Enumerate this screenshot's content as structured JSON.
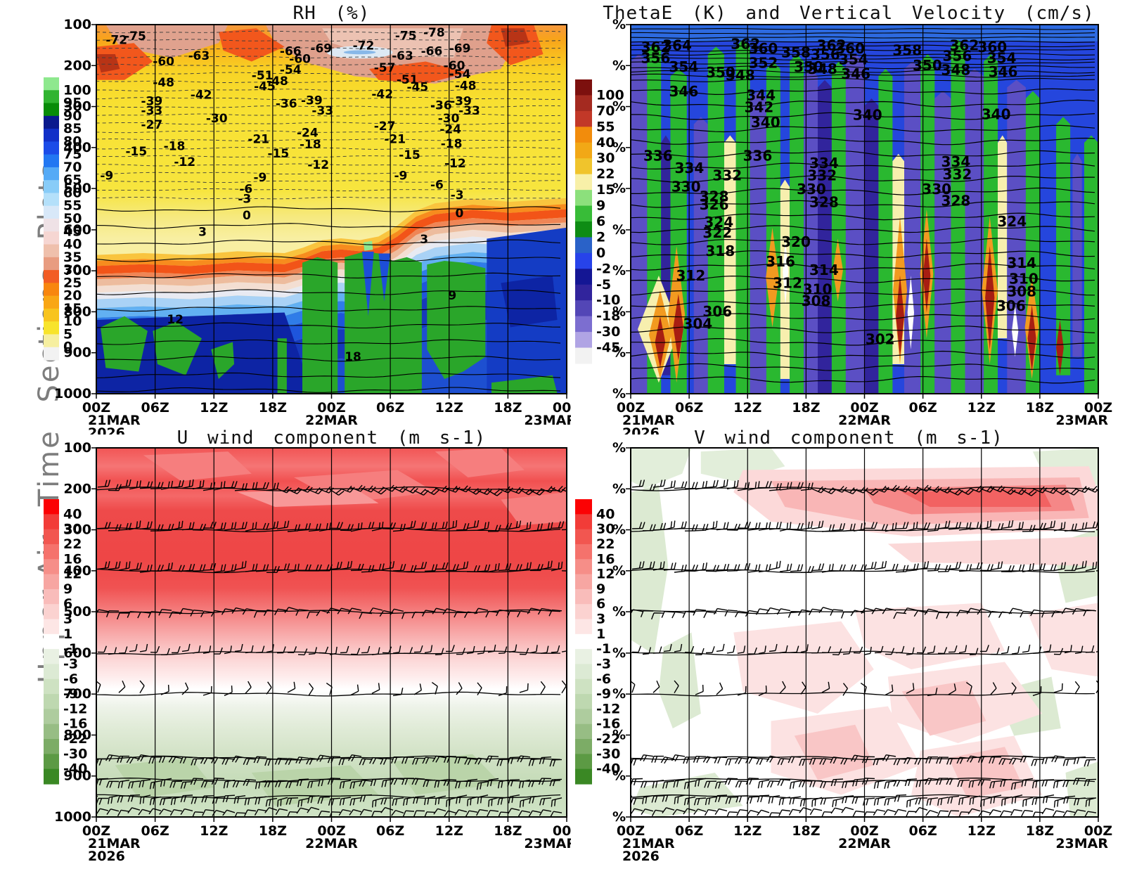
{
  "page": {
    "vertical_title": "Upper-Air Time Sections Plots",
    "background": "#ffffff",
    "text_color": "#111111"
  },
  "time_axis": {
    "ticks": [
      "00Z",
      "06Z",
      "12Z",
      "18Z",
      "00Z",
      "06Z",
      "12Z",
      "18Z",
      "00Z"
    ],
    "dates": [
      {
        "tick_index": 0,
        "label": "21MAR",
        "year": "2026"
      },
      {
        "tick_index": 4,
        "label": "22MAR"
      },
      {
        "tick_index": 8,
        "label": "23MAR"
      }
    ]
  },
  "chart_data": [
    {
      "id": "rh",
      "type": "heatmap",
      "title": "RH (%)",
      "x_ticks": [
        "00Z",
        "06Z",
        "12Z",
        "18Z",
        "00Z",
        "06Z",
        "12Z",
        "18Z",
        "00Z"
      ],
      "y_ticks": [
        "100",
        "200",
        "300",
        "400",
        "500",
        "600",
        "700",
        "800",
        "900",
        "1000"
      ],
      "y_axis": "pressure (hPa), linear 100-1000, top=100",
      "x_axis": "time 21MAR2026 00Z - 23MAR 00Z every 6h",
      "legend_position": "left",
      "grid": "vertical lines every 6h",
      "colorbar": {
        "labels": [
          "100",
          "95",
          "90",
          "85",
          "80",
          "75",
          "70",
          "65",
          "60",
          "55",
          "50",
          "45",
          "40",
          "35",
          "30",
          "25",
          "20",
          "15",
          "10",
          "5",
          "0"
        ],
        "colors": [
          "#8ee88e",
          "#30b430",
          "#088c08",
          "#0a1a8e",
          "#1130c8",
          "#1b4ce8",
          "#2277f2",
          "#55aaf6",
          "#88ccf8",
          "#b4e0fa",
          "#d8e8f8",
          "#efe2e6",
          "#f6d6d2",
          "#efc0ac",
          "#e89c80",
          "#f25c24",
          "#f8860e",
          "#f9a614",
          "#f8c41e",
          "#f8e42c",
          "#f6efa0",
          "#f2f2f2"
        ]
      },
      "overlay": "dashed temperature contours (deg C) upper, solid contours lower",
      "contour_labels": [
        [
          "-72",
          2.0,
          2.6
        ],
        [
          "-75",
          6.0,
          1.6
        ],
        [
          "-63",
          19.5,
          6.9
        ],
        [
          "-60",
          12.0,
          8.5
        ],
        [
          "-48",
          12.0,
          14.2
        ],
        [
          "-42",
          20.0,
          17.5
        ],
        [
          "-39",
          9.5,
          19.2
        ],
        [
          "-33",
          9.5,
          21.8
        ],
        [
          "-30",
          23.3,
          23.9
        ],
        [
          "-27",
          9.5,
          25.6
        ],
        [
          "-66",
          39.0,
          5.7
        ],
        [
          "-69",
          45.5,
          4.9
        ],
        [
          "-60",
          41.0,
          7.8
        ],
        [
          "-54",
          39.0,
          10.7
        ],
        [
          "-51",
          33.0,
          12.3
        ],
        [
          "-48",
          36.2,
          13.8
        ],
        [
          "-45",
          33.5,
          15.2
        ],
        [
          "-72",
          54.5,
          4.2
        ],
        [
          "-75",
          63.5,
          1.5
        ],
        [
          "-78",
          69.5,
          0.6
        ],
        [
          "-57",
          59.0,
          10.2
        ],
        [
          "-63",
          62.8,
          6.9
        ],
        [
          "-66",
          69.0,
          5.7
        ],
        [
          "-69",
          75.0,
          4.9
        ],
        [
          "-51",
          63.8,
          13.4
        ],
        [
          "-45",
          66.0,
          15.4
        ],
        [
          "-42",
          58.5,
          17.3
        ],
        [
          "-60",
          73.8,
          9.6
        ],
        [
          "-54",
          75.0,
          11.9
        ],
        [
          "-48",
          76.2,
          15.0
        ],
        [
          "-36",
          38.1,
          19.9
        ],
        [
          "-39",
          43.5,
          19.0
        ],
        [
          "-33",
          45.8,
          21.8
        ],
        [
          "-36",
          71.0,
          20.4
        ],
        [
          "-39",
          75.2,
          19.2
        ],
        [
          "-33",
          77.0,
          21.8
        ],
        [
          "-30",
          72.6,
          23.9
        ],
        [
          "-27",
          59.0,
          26.0
        ],
        [
          "-24",
          42.6,
          27.8
        ],
        [
          "-24",
          73.0,
          26.8
        ],
        [
          "-21",
          32.2,
          29.5
        ],
        [
          "-21",
          61.2,
          29.5
        ],
        [
          "-18",
          14.3,
          31.4
        ],
        [
          "-18",
          43.2,
          30.9
        ],
        [
          "-18",
          73.2,
          30.7
        ],
        [
          "-15",
          6.2,
          32.8
        ],
        [
          "-15",
          36.4,
          33.4
        ],
        [
          "-15",
          64.3,
          33.8
        ],
        [
          "-12",
          16.5,
          35.7
        ],
        [
          "-12",
          44.9,
          36.5
        ],
        [
          "-12",
          74.0,
          36.1
        ],
        [
          "-9",
          0.8,
          39.4
        ],
        [
          "-9",
          33.4,
          39.9
        ],
        [
          "-9",
          63.3,
          39.4
        ],
        [
          "-6",
          30.4,
          43.0
        ],
        [
          "-6",
          71.0,
          41.9
        ],
        [
          "-3",
          30.1,
          45.7
        ],
        [
          "-3",
          75.3,
          44.6
        ],
        [
          "0",
          31.1,
          50.2
        ],
        [
          "0",
          76.3,
          49.6
        ],
        [
          "3",
          21.7,
          54.6
        ],
        [
          "3",
          68.8,
          56.6
        ],
        [
          "9",
          74.8,
          71.9
        ],
        [
          "12",
          15.0,
          78.4
        ],
        [
          "18",
          52.8,
          88.5
        ]
      ]
    },
    {
      "id": "thetae",
      "type": "heatmap",
      "title": "ThetaE (K) and Vertical Velocity (cm/s)",
      "x_ticks": [
        "00Z",
        "06Z",
        "12Z",
        "18Z",
        "00Z",
        "06Z",
        "12Z",
        "18Z",
        "00Z"
      ],
      "y_ticks": [
        "%",
        "%",
        "%",
        "%",
        "%",
        "%",
        "%",
        "%",
        "%",
        "%"
      ],
      "y_axis": "pressure levels (labels rendered as %)",
      "legend_position": "left",
      "grid": "vertical lines every 6h",
      "colorbar": {
        "labels": [
          "100",
          "70",
          "55",
          "40",
          "30",
          "22",
          "15",
          "9",
          "6",
          "2",
          "0",
          "-2",
          "-5",
          "-10",
          "-18",
          "-30",
          "-45"
        ],
        "colors": [
          "#7c100e",
          "#a42a20",
          "#c23828",
          "#f28c0c",
          "#f2a816",
          "#f0c42c",
          "#f8f0a8",
          "#8ce07c",
          "#38bc38",
          "#0e8c14",
          "#2a62c8",
          "#2743ea",
          "#141694",
          "#31249c",
          "#5346b6",
          "#7c6ed0",
          "#b0a4e4",
          "#f2f2f2"
        ]
      },
      "overlay": "solid ThetaE contours (K), shading = vertical velocity (cm/s)",
      "contour_labels": [
        [
          "362",
          2.2,
          4.4
        ],
        [
          "364",
          6.8,
          3.9
        ],
        [
          "356",
          2.2,
          7.3
        ],
        [
          "354",
          8.2,
          9.7
        ],
        [
          "350",
          16.1,
          11.2
        ],
        [
          "348",
          20.3,
          12.0
        ],
        [
          "346",
          8.2,
          16.4
        ],
        [
          "362",
          21.4,
          3.5
        ],
        [
          "360",
          25.2,
          4.8
        ],
        [
          "352",
          25.2,
          8.7
        ],
        [
          "358",
          32.2,
          5.8
        ],
        [
          "350",
          34.9,
          9.7
        ],
        [
          "348",
          37.9,
          10.3
        ],
        [
          "362",
          39.8,
          3.9
        ],
        [
          "360",
          43.8,
          4.8
        ],
        [
          "356",
          38.5,
          6.4
        ],
        [
          "354",
          44.5,
          7.7
        ],
        [
          "346",
          45.0,
          11.6
        ],
        [
          "344",
          24.7,
          17.4
        ],
        [
          "342",
          24.3,
          20.7
        ],
        [
          "340",
          25.7,
          24.8
        ],
        [
          "340",
          47.5,
          22.8
        ],
        [
          "336",
          2.7,
          33.8
        ],
        [
          "336",
          24.0,
          33.8
        ],
        [
          "334",
          9.4,
          37.1
        ],
        [
          "332",
          17.5,
          39.1
        ],
        [
          "330",
          8.7,
          42.2
        ],
        [
          "328",
          14.7,
          44.9
        ],
        [
          "326",
          14.7,
          47.0
        ],
        [
          "334",
          38.2,
          35.8
        ],
        [
          "332",
          37.8,
          39.1
        ],
        [
          "330",
          35.5,
          42.9
        ],
        [
          "328",
          38.2,
          46.4
        ],
        [
          "324",
          15.7,
          51.8
        ],
        [
          "322",
          15.4,
          54.7
        ],
        [
          "320",
          32.2,
          57.1
        ],
        [
          "318",
          16.0,
          59.6
        ],
        [
          "316",
          28.9,
          62.5
        ],
        [
          "314",
          38.2,
          64.8
        ],
        [
          "312",
          9.7,
          66.3
        ],
        [
          "312",
          30.4,
          68.3
        ],
        [
          "310",
          36.8,
          70.0
        ],
        [
          "308",
          36.5,
          73.1
        ],
        [
          "306",
          15.4,
          76.0
        ],
        [
          "304",
          11.2,
          79.3
        ],
        [
          "302",
          50.2,
          83.5
        ],
        [
          "358",
          56.0,
          5.2
        ],
        [
          "350",
          60.3,
          9.3
        ],
        [
          "362",
          68.2,
          3.9
        ],
        [
          "360",
          74.2,
          4.4
        ],
        [
          "356",
          66.7,
          6.8
        ],
        [
          "354",
          76.2,
          7.3
        ],
        [
          "348",
          66.4,
          10.6
        ],
        [
          "346",
          76.5,
          11.0
        ],
        [
          "340",
          75.0,
          22.6
        ],
        [
          "334",
          66.4,
          35.4
        ],
        [
          "332",
          66.7,
          38.9
        ],
        [
          "330",
          62.3,
          42.9
        ],
        [
          "328",
          66.4,
          46.0
        ],
        [
          "324",
          78.4,
          51.6
        ],
        [
          "314",
          80.5,
          62.9
        ],
        [
          "310",
          80.9,
          67.1
        ],
        [
          "308",
          80.5,
          70.6
        ],
        [
          "306",
          78.2,
          74.5
        ]
      ]
    },
    {
      "id": "uwind",
      "type": "heatmap",
      "title": "U wind component (m s-1)",
      "x_ticks": [
        "00Z",
        "06Z",
        "12Z",
        "18Z",
        "00Z",
        "06Z",
        "12Z",
        "18Z",
        "00Z"
      ],
      "y_ticks": [
        "100",
        "200",
        "300",
        "400",
        "500",
        "600",
        "700",
        "800",
        "900",
        "1000"
      ],
      "y_axis": "pressure (hPa), linear 100-1000, top=100",
      "legend_position": "left",
      "grid": "vertical lines every 6h",
      "colorbar": {
        "labels": [
          "40",
          "30",
          "22",
          "16",
          "12",
          "9",
          "6",
          "3",
          "1",
          "-1",
          "-3",
          "-6",
          "-9",
          "-12",
          "-16",
          "-22",
          "-30",
          "-40"
        ],
        "colors": [
          "#fb0204",
          "#f23c38",
          "#f25650",
          "#f5726c",
          "#f68e88",
          "#f7a6a2",
          "#f9bcba",
          "#fbd2d0",
          "#fde6e5",
          "#ffffff",
          "#e9f1e3",
          "#dcead4",
          "#cee2c2",
          "#bed8b0",
          "#aecc9e",
          "#97bd84",
          "#7cac66",
          "#5c9a44",
          "#3a8824"
        ]
      },
      "overlay": "wind barbs at 200,300,400,500,600,700,850,900,950,1000 hPa",
      "contour_labels": []
    },
    {
      "id": "vwind",
      "type": "heatmap",
      "title": "V wind component (m s-1)",
      "x_ticks": [
        "00Z",
        "06Z",
        "12Z",
        "18Z",
        "00Z",
        "06Z",
        "12Z",
        "18Z",
        "00Z"
      ],
      "y_ticks": [
        "%",
        "%",
        "%",
        "%",
        "%",
        "%",
        "%",
        "%",
        "%",
        "%"
      ],
      "y_axis": "pressure levels (labels rendered as %)",
      "legend_position": "left",
      "grid": "vertical lines every 6h",
      "colorbar": {
        "labels": [
          "40",
          "30",
          "22",
          "16",
          "12",
          "9",
          "6",
          "3",
          "1",
          "-1",
          "-3",
          "-6",
          "-9",
          "-12",
          "-16",
          "-22",
          "-30",
          "-40"
        ],
        "colors": [
          "#fb0204",
          "#f23c38",
          "#f25650",
          "#f5726c",
          "#f68e88",
          "#f7a6a2",
          "#f9bcba",
          "#fbd2d0",
          "#fde6e5",
          "#ffffff",
          "#e9f1e3",
          "#dcead4",
          "#cee2c2",
          "#bed8b0",
          "#aecc9e",
          "#97bd84",
          "#7cac66",
          "#5c9a44",
          "#3a8824"
        ]
      },
      "overlay": "wind barbs at 200,300,400,500,600,700,850,900,950,1000 hPa",
      "contour_labels": []
    }
  ]
}
